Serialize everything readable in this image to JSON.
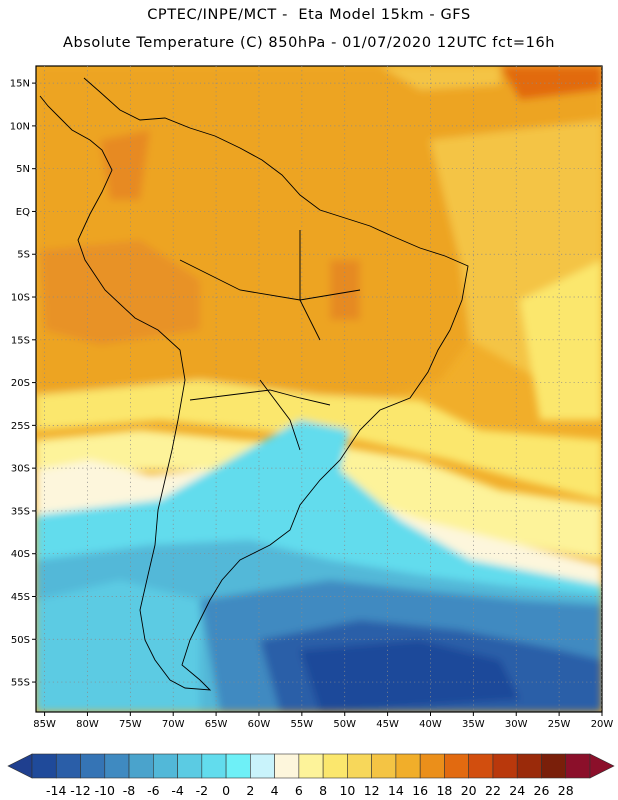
{
  "header": {
    "line1": "CPTEC/INPE/MCT -  Eta Model 15km - GFS",
    "line2": "Absolute Temperature (C) 850hPa - 01/07/2020 12UTC fct=16h"
  },
  "map": {
    "lat_range": [
      -58.5,
      17
    ],
    "lon_range": [
      -86,
      -20
    ],
    "lat_ticks": [
      "15N",
      "10N",
      "5N",
      "EQ",
      "5S",
      "10S",
      "15S",
      "20S",
      "25S",
      "30S",
      "35S",
      "40S",
      "45S",
      "50S",
      "55S"
    ],
    "lon_ticks": [
      "85W",
      "80W",
      "75W",
      "70W",
      "65W",
      "60W",
      "55W",
      "50W",
      "45W",
      "40W",
      "35W",
      "30W",
      "25W",
      "20W"
    ],
    "grid": "dotted"
  },
  "colorbar": {
    "labels": [
      "-14",
      "-12",
      "-10",
      "-8",
      "-6",
      "-4",
      "-2",
      "0",
      "2",
      "4",
      "6",
      "8",
      "10",
      "12",
      "14",
      "16",
      "18",
      "20",
      "22",
      "24",
      "26",
      "28"
    ],
    "colors": [
      "#1f4a9a",
      "#2a5ea8",
      "#3574b5",
      "#3f8ac1",
      "#4aa3cc",
      "#52b8d8",
      "#5bcbe3",
      "#62dced",
      "#6ef0f7",
      "#c9f3fb",
      "#fdf6dc",
      "#fdf39a",
      "#fbe76d",
      "#f7d75a",
      "#f4c444",
      "#f1ae2a",
      "#eb8f1a",
      "#e26a10",
      "#d24e0e",
      "#b9380c",
      "#9a2a0a",
      "#7a1f0a",
      "#8b0f2a"
    ],
    "under_color": "#1f3f8f",
    "over_color": "#8b0f2a"
  }
}
